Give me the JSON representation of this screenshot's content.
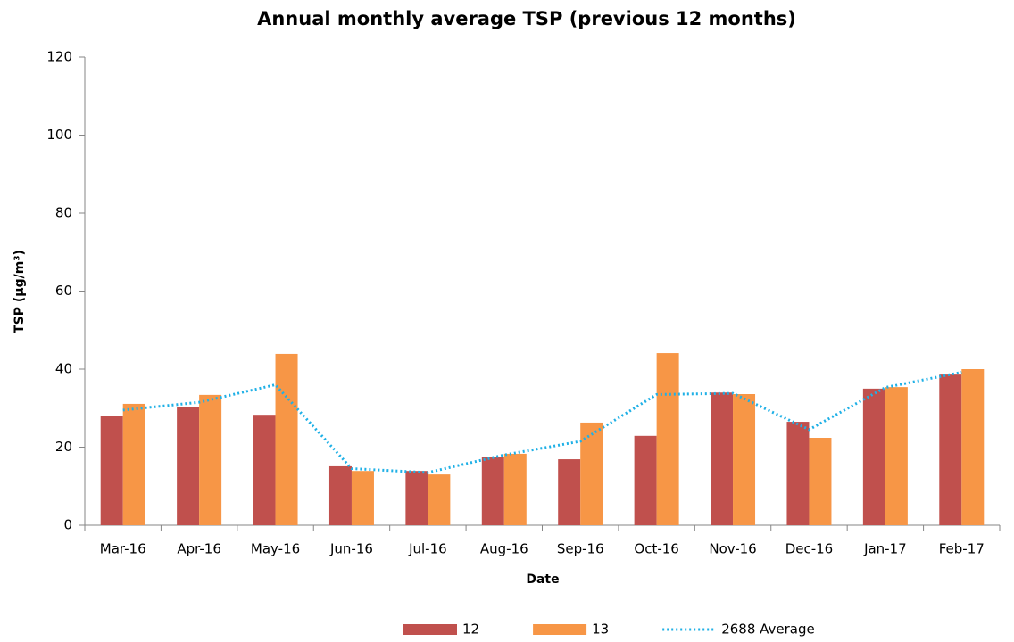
{
  "chart_data": {
    "type": "bar",
    "title": "Annual monthly average TSP (previous 12 months)",
    "y_label": "TSP (µg/m³)",
    "x_label": "Date",
    "categories": [
      "Mar-16",
      "Apr-16",
      "May-16",
      "Jun-16",
      "Jul-16",
      "Aug-16",
      "Sep-16",
      "Oct-16",
      "Nov-16",
      "Dec-16",
      "Jan-17",
      "Feb-17"
    ],
    "series": [
      {
        "name": "12",
        "type": "bar",
        "color": "#c0504d",
        "values": [
          28.1,
          30.2,
          28.3,
          15.1,
          13.9,
          17.4,
          16.9,
          22.9,
          34,
          26.5,
          35,
          38.6
        ]
      },
      {
        "name": "13",
        "type": "bar",
        "color": "#f79646",
        "values": [
          31.1,
          33.4,
          43.9,
          13.9,
          13,
          18.3,
          26.3,
          44.1,
          33.6,
          22.4,
          35.4,
          40
        ]
      },
      {
        "name": "2688 Average",
        "type": "line",
        "color": "#1fb0e6",
        "values": [
          29.5,
          31.5,
          36,
          14.5,
          13.5,
          18,
          21.5,
          33.5,
          33.8,
          24.5,
          35.3,
          39.2
        ]
      }
    ],
    "ylim": [
      0,
      120
    ],
    "yticks": [
      0,
      20,
      40,
      60,
      80,
      100,
      120
    ],
    "legend": "bottom"
  }
}
